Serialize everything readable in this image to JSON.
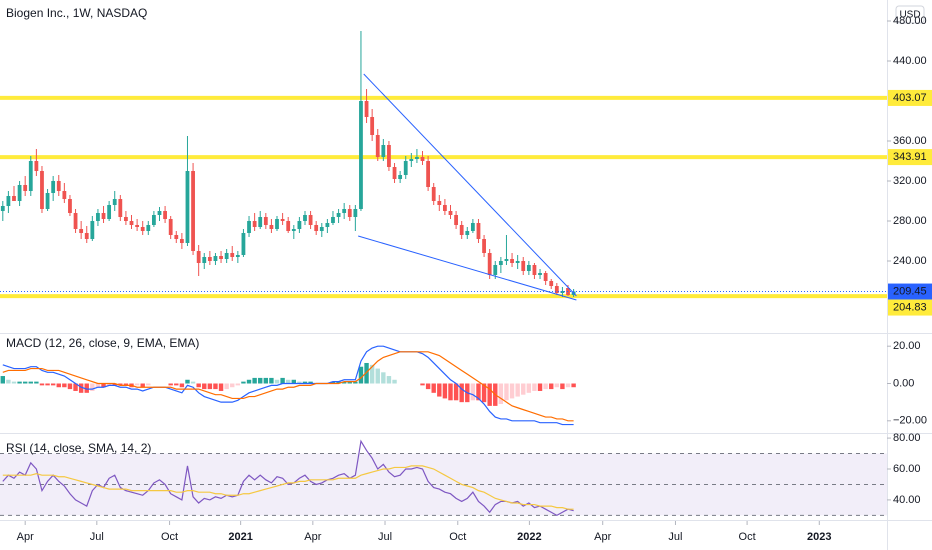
{
  "chart_data": [
    {
      "type": "candlestick",
      "title": "Biogen Inc., 1W, NASDAQ",
      "currency": "USD",
      "up_color": "#26a69a",
      "down_color": "#ef5350",
      "ohlc": [
        [
          290,
          300,
          280,
          295
        ],
        [
          295,
          310,
          288,
          305
        ],
        [
          305,
          315,
          300,
          300
        ],
        [
          300,
          320,
          295,
          316
        ],
        [
          316,
          325,
          305,
          310
        ],
        [
          310,
          345,
          305,
          340
        ],
        [
          340,
          352,
          325,
          330
        ],
        [
          330,
          335,
          288,
          292
        ],
        [
          292,
          312,
          290,
          308
        ],
        [
          308,
          325,
          300,
          320
        ],
        [
          320,
          326,
          305,
          310
        ],
        [
          310,
          318,
          298,
          302
        ],
        [
          302,
          306,
          285,
          288
        ],
        [
          288,
          292,
          268,
          272
        ],
        [
          272,
          280,
          262,
          268
        ],
        [
          268,
          275,
          258,
          262
        ],
        [
          262,
          285,
          260,
          280
        ],
        [
          280,
          292,
          275,
          288
        ],
        [
          288,
          295,
          278,
          282
        ],
        [
          282,
          300,
          280,
          296
        ],
        [
          296,
          310,
          290,
          302
        ],
        [
          302,
          306,
          280,
          284
        ],
        [
          284,
          290,
          276,
          280
        ],
        [
          280,
          286,
          272,
          276
        ],
        [
          276,
          282,
          270,
          274
        ],
        [
          274,
          280,
          266,
          270
        ],
        [
          270,
          280,
          266,
          276
        ],
        [
          276,
          290,
          274,
          286
        ],
        [
          286,
          294,
          280,
          290
        ],
        [
          290,
          295,
          278,
          282
        ],
        [
          282,
          285,
          262,
          266
        ],
        [
          266,
          270,
          258,
          262
        ],
        [
          262,
          268,
          252,
          258
        ],
        [
          258,
          365,
          255,
          330
        ],
        [
          330,
          338,
          246,
          250
        ],
        [
          250,
          256,
          225,
          238
        ],
        [
          238,
          248,
          232,
          244
        ],
        [
          244,
          250,
          236,
          240
        ],
        [
          240,
          248,
          236,
          245
        ],
        [
          245,
          250,
          238,
          242
        ],
        [
          242,
          252,
          238,
          248
        ],
        [
          248,
          255,
          240,
          244
        ],
        [
          244,
          250,
          238,
          246
        ],
        [
          246,
          272,
          244,
          268
        ],
        [
          268,
          285,
          264,
          280
        ],
        [
          280,
          288,
          270,
          274
        ],
        [
          274,
          290,
          272,
          284
        ],
        [
          284,
          288,
          272,
          276
        ],
        [
          276,
          282,
          268,
          272
        ],
        [
          272,
          285,
          270,
          282
        ],
        [
          282,
          288,
          276,
          280
        ],
        [
          280,
          284,
          268,
          270
        ],
        [
          270,
          276,
          262,
          272
        ],
        [
          272,
          284,
          268,
          280
        ],
        [
          280,
          290,
          276,
          286
        ],
        [
          286,
          290,
          272,
          276
        ],
        [
          276,
          280,
          266,
          270
        ],
        [
          270,
          278,
          264,
          274
        ],
        [
          274,
          282,
          268,
          278
        ],
        [
          278,
          290,
          276,
          284
        ],
        [
          284,
          292,
          278,
          288
        ],
        [
          288,
          298,
          282,
          292
        ],
        [
          292,
          296,
          280,
          284
        ],
        [
          284,
          296,
          270,
          292
        ],
        [
          292,
          470,
          290,
          400
        ],
        [
          400,
          412,
          378,
          384
        ],
        [
          384,
          392,
          360,
          366
        ],
        [
          366,
          372,
          340,
          344
        ],
        [
          344,
          362,
          340,
          356
        ],
        [
          356,
          360,
          330,
          334
        ],
        [
          334,
          338,
          318,
          322
        ],
        [
          322,
          330,
          318,
          326
        ],
        [
          326,
          345,
          322,
          340
        ],
        [
          340,
          348,
          334,
          342
        ],
        [
          342,
          352,
          338,
          344
        ],
        [
          344,
          350,
          336,
          340
        ],
        [
          340,
          345,
          310,
          314
        ],
        [
          314,
          318,
          296,
          300
        ],
        [
          300,
          306,
          290,
          296
        ],
        [
          296,
          302,
          286,
          290
        ],
        [
          290,
          296,
          282,
          286
        ],
        [
          286,
          290,
          272,
          276
        ],
        [
          276,
          280,
          262,
          266
        ],
        [
          266,
          274,
          262,
          270
        ],
        [
          270,
          282,
          268,
          278
        ],
        [
          278,
          282,
          258,
          262
        ],
        [
          262,
          266,
          244,
          248
        ],
        [
          248,
          252,
          222,
          226
        ],
        [
          226,
          240,
          222,
          236
        ],
        [
          236,
          244,
          228,
          240
        ],
        [
          240,
          266,
          236,
          242
        ],
        [
          242,
          248,
          234,
          238
        ],
        [
          238,
          246,
          232,
          240
        ],
        [
          240,
          244,
          226,
          230
        ],
        [
          230,
          240,
          226,
          236
        ],
        [
          236,
          238,
          222,
          226
        ],
        [
          226,
          232,
          222,
          228
        ],
        [
          228,
          230,
          216,
          220
        ],
        [
          220,
          222,
          212,
          215
        ],
        [
          215,
          218,
          206,
          208
        ],
        [
          208,
          214,
          204,
          210
        ],
        [
          213,
          216,
          205,
          206
        ],
        [
          206,
          212,
          204,
          209.45
        ]
      ],
      "ylim": [
        168,
        501
      ],
      "yticks": [
        {
          "value": 240,
          "label": "240.00"
        },
        {
          "value": 280,
          "label": "280.00"
        },
        {
          "value": 320,
          "label": "320.00"
        },
        {
          "value": 360,
          "label": "360.00"
        },
        {
          "value": 440,
          "label": "440.00"
        },
        {
          "value": 480,
          "label": "480.00"
        }
      ],
      "levels": [
        403.07,
        343.91,
        204.83
      ],
      "level_color": "#ffeb3b",
      "last_price_color": "#2962ff",
      "trendlines": [
        [
          [
            64.5,
            427
          ],
          [
            102.5,
            205
          ]
        ],
        [
          [
            63.5,
            265
          ],
          [
            102.5,
            201
          ]
        ]
      ],
      "trend_color": "#2962ff"
    },
    {
      "type": "macd",
      "title": "MACD (12, 26, close, 9, EMA, EMA)",
      "series": [
        {
          "color": "#2962ff",
          "values": [
            10,
            9,
            8,
            8,
            8,
            9,
            9,
            7,
            6,
            6,
            5,
            4,
            2,
            0,
            -2,
            -3,
            -3,
            -2,
            -2,
            -1,
            -1,
            -2,
            -2,
            -3,
            -3,
            -4,
            -3,
            -2,
            -2,
            -2,
            -3,
            -4,
            -5,
            -1,
            -2,
            -5,
            -7,
            -8,
            -9,
            -10,
            -10,
            -10,
            -9,
            -7,
            -5,
            -4,
            -3,
            -2,
            -1,
            -1,
            0,
            0,
            0,
            0,
            0,
            0,
            0,
            0,
            0,
            1,
            1,
            2,
            2,
            2,
            12,
            17,
            19,
            20,
            20,
            19,
            18,
            17,
            17,
            17,
            17,
            16,
            14,
            11,
            8,
            5,
            2,
            0,
            -3,
            -5,
            -6,
            -8,
            -11,
            -15,
            -18,
            -19,
            -19,
            -20,
            -20,
            -20,
            -20,
            -20,
            -21,
            -21,
            -21,
            -21,
            -22,
            -22,
            -22
          ]
        },
        {
          "color": "#ff6d00",
          "values": [
            6,
            7,
            7,
            7,
            7,
            8,
            8,
            8,
            7,
            7,
            7,
            6,
            5,
            4,
            3,
            2,
            1,
            0,
            0,
            0,
            0,
            -1,
            -1,
            -1,
            -2,
            -2,
            -2,
            -2,
            -2,
            -2,
            -2,
            -3,
            -3,
            -3,
            -3,
            -3,
            -4,
            -5,
            -6,
            -6,
            -7,
            -8,
            -8,
            -8,
            -7,
            -7,
            -6,
            -5,
            -4,
            -3,
            -3,
            -2,
            -2,
            -1,
            -1,
            -1,
            0,
            0,
            0,
            0,
            0,
            1,
            1,
            1,
            3,
            6,
            9,
            12,
            14,
            15,
            16,
            17,
            17,
            17,
            17,
            17,
            17,
            16,
            15,
            13,
            11,
            9,
            7,
            5,
            3,
            1,
            -1,
            -3,
            -6,
            -8,
            -10,
            -12,
            -13,
            -14,
            -15,
            -16,
            -17,
            -18,
            -18,
            -19,
            -19,
            -20,
            -20
          ]
        }
      ],
      "histogram": [
        4,
        2,
        1,
        1,
        1,
        1,
        1,
        -1,
        -1,
        -1,
        -2,
        -2,
        -3,
        -4,
        -5,
        -5,
        -4,
        -2,
        -2,
        -1,
        -1,
        -1,
        -1,
        -2,
        -1,
        -2,
        -1,
        0,
        0,
        0,
        -1,
        -1,
        -2,
        2,
        1,
        -2,
        -3,
        -3,
        -3,
        -4,
        -3,
        -2,
        -1,
        1,
        2,
        3,
        3,
        3,
        3,
        2,
        3,
        2,
        2,
        1,
        1,
        1,
        0,
        0,
        0,
        1,
        1,
        1,
        1,
        1,
        9,
        11,
        10,
        8,
        6,
        4,
        2,
        0,
        0,
        0,
        0,
        -1,
        -3,
        -5,
        -7,
        -8,
        -9,
        -9,
        -10,
        -10,
        -9,
        -9,
        -10,
        -12,
        -12,
        -11,
        -9,
        -8,
        -7,
        -6,
        -5,
        -4,
        -4,
        -3,
        -3,
        -2,
        -3,
        -2,
        -2
      ],
      "histogram_colors": [
        "#26a69a",
        "#b2dfdb",
        "#ff5252",
        "#ffcdd2"
      ],
      "ylim": [
        -26,
        26
      ],
      "yticks": [
        {
          "value": 20,
          "label": "20.00"
        },
        {
          "value": 0,
          "label": "0.00"
        },
        {
          "value": -20,
          "label": "−20.00"
        }
      ]
    },
    {
      "type": "line",
      "title": "RSI (14, close, SMA, 14, 2)",
      "series": [
        {
          "color": "#7e57c2",
          "values": [
            52,
            56,
            54,
            58,
            56,
            64,
            60,
            46,
            52,
            56,
            52,
            49,
            44,
            40,
            38,
            36,
            46,
            50,
            48,
            54,
            56,
            48,
            46,
            45,
            44,
            43,
            46,
            51,
            53,
            50,
            44,
            42,
            40,
            62,
            42,
            38,
            41,
            40,
            42,
            41,
            43,
            42,
            43,
            52,
            56,
            53,
            56,
            53,
            51,
            55,
            54,
            50,
            51,
            54,
            56,
            52,
            50,
            51,
            53,
            54,
            56,
            57,
            54,
            56,
            78,
            72,
            67,
            60,
            63,
            58,
            55,
            56,
            60,
            60,
            61,
            60,
            52,
            48,
            47,
            45,
            44,
            41,
            39,
            41,
            45,
            39,
            36,
            32,
            37,
            39,
            39,
            38,
            39,
            36,
            38,
            35,
            36,
            34,
            32,
            30,
            32,
            34,
            33
          ]
        },
        {
          "color": "#f5c842",
          "values": [
            56,
            56,
            56,
            56,
            56,
            56,
            57,
            56,
            56,
            56,
            55,
            55,
            54,
            53,
            52,
            51,
            50,
            49,
            48,
            47,
            47,
            47,
            47,
            46,
            46,
            46,
            46,
            46,
            46,
            46,
            46,
            45,
            45,
            46,
            46,
            45,
            45,
            45,
            44,
            44,
            43,
            43,
            43,
            44,
            44,
            45,
            46,
            47,
            48,
            49,
            50,
            51,
            51,
            52,
            52,
            53,
            53,
            53,
            53,
            53,
            54,
            54,
            54,
            54,
            56,
            57,
            58,
            59,
            60,
            60,
            61,
            61,
            61,
            62,
            62,
            62,
            61,
            60,
            58,
            56,
            54,
            52,
            50,
            49,
            48,
            46,
            45,
            43,
            41,
            40,
            39,
            38,
            38,
            37,
            37,
            37,
            36,
            36,
            36,
            35,
            35,
            34,
            34
          ]
        }
      ],
      "levels": [
        70,
        50,
        30
      ],
      "band_color": "#7e57c2",
      "ylim": [
        27,
        82
      ],
      "yticks": [
        {
          "value": 80,
          "label": "80.00"
        },
        {
          "value": 60,
          "label": "60.00"
        },
        {
          "value": 40,
          "label": "40.00"
        }
      ],
      "xlim": [
        -0.5,
        158
      ],
      "xticks": [
        {
          "value": 4,
          "label": "Apr"
        },
        {
          "value": 16.8,
          "label": "Jul"
        },
        {
          "value": 29.8,
          "label": "Oct"
        },
        {
          "value": 42.5,
          "label": "2021"
        },
        {
          "value": 55.4,
          "label": "Apr"
        },
        {
          "value": 68.3,
          "label": "Jul"
        },
        {
          "value": 81.3,
          "label": "Oct"
        },
        {
          "value": 94.1,
          "label": "2022"
        },
        {
          "value": 107.2,
          "label": "Apr"
        },
        {
          "value": 120.2,
          "label": "Jul"
        },
        {
          "value": 133,
          "label": "Oct"
        },
        {
          "value": 145.9,
          "label": "2023"
        }
      ]
    }
  ]
}
